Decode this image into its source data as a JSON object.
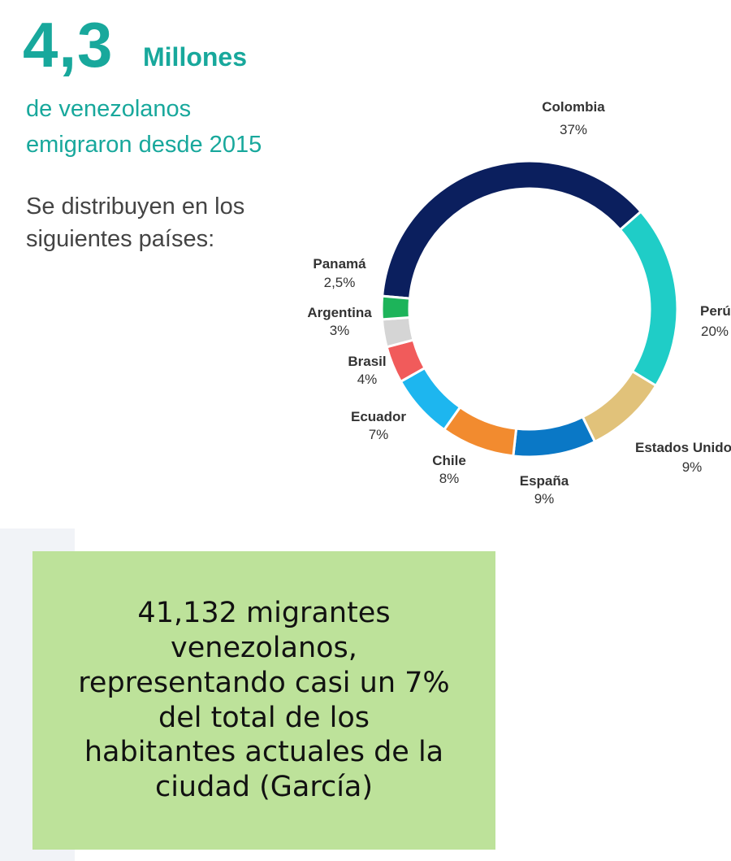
{
  "header": {
    "number": "4,3",
    "unit": "Millones",
    "subtitle": [
      "de venezolanos",
      "emigraron desde 2015"
    ],
    "intro": [
      "Se distribuyen en los",
      "siguientes países:"
    ]
  },
  "chart_data": {
    "type": "pie",
    "donut": true,
    "categories": [
      "Colombia",
      "Perú",
      "Estados Unidos",
      "España",
      "Chile",
      "Ecuador",
      "Brasil",
      "Argentina",
      "Panamá"
    ],
    "values": [
      37,
      20,
      9,
      9,
      8,
      7,
      4,
      3,
      2.5
    ],
    "value_labels": [
      "37%",
      "20%",
      "9%",
      "9%",
      "8%",
      "7%",
      "4%",
      "3%",
      "2,5%"
    ],
    "colors": [
      "#0b1f5e",
      "#1fcdc7",
      "#e1c27a",
      "#0a78c6",
      "#f28b2f",
      "#1db6ef",
      "#f15b5b",
      "#d5d5d5",
      "#1db45a"
    ]
  },
  "note": {
    "lines": [
      "41,132 migrantes",
      "venezolanos,",
      "representando casi un 7%",
      "del total de los",
      "habitantes actuales de la",
      "ciudad (García)"
    ]
  }
}
